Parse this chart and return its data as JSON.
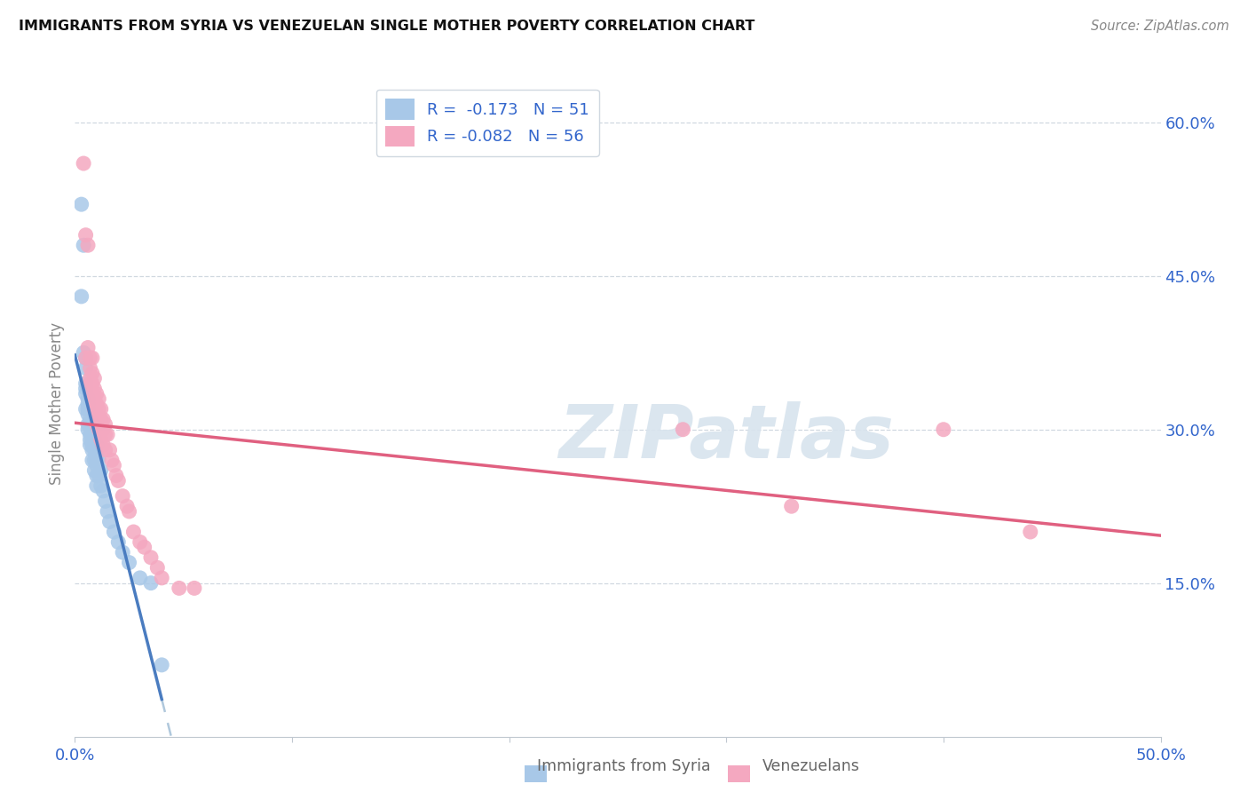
{
  "title": "IMMIGRANTS FROM SYRIA VS VENEZUELAN SINGLE MOTHER POVERTY CORRELATION CHART",
  "source": "Source: ZipAtlas.com",
  "ylabel": "Single Mother Poverty",
  "xlim": [
    0.0,
    0.5
  ],
  "ylim": [
    0.0,
    0.65
  ],
  "xticks": [
    0.0,
    0.1,
    0.2,
    0.3,
    0.4,
    0.5
  ],
  "xticklabels": [
    "0.0%",
    "",
    "",
    "",
    "",
    "50.0%"
  ],
  "yticks_right": [
    0.15,
    0.3,
    0.45,
    0.6
  ],
  "ytick_labels_right": [
    "15.0%",
    "30.0%",
    "45.0%",
    "60.0%"
  ],
  "legend_r_syria": "-0.173",
  "legend_n_syria": "51",
  "legend_r_venezuela": "-0.082",
  "legend_n_venezuela": "56",
  "color_syria": "#a8c8e8",
  "color_venezuela": "#f4a8c0",
  "color_syria_line": "#4a7cc0",
  "color_venezuela_line": "#e06080",
  "color_dashed": "#b0c8dc",
  "watermark": "ZIPatlas",
  "syria_x": [
    0.003,
    0.004,
    0.003,
    0.004,
    0.005,
    0.005,
    0.005,
    0.005,
    0.005,
    0.005,
    0.006,
    0.006,
    0.006,
    0.006,
    0.006,
    0.006,
    0.007,
    0.007,
    0.007,
    0.007,
    0.007,
    0.008,
    0.008,
    0.008,
    0.008,
    0.008,
    0.009,
    0.009,
    0.009,
    0.009,
    0.01,
    0.01,
    0.01,
    0.01,
    0.01,
    0.01,
    0.011,
    0.011,
    0.012,
    0.012,
    0.013,
    0.014,
    0.015,
    0.016,
    0.018,
    0.02,
    0.022,
    0.025,
    0.03,
    0.035,
    0.04
  ],
  "syria_y": [
    0.52,
    0.48,
    0.43,
    0.375,
    0.37,
    0.36,
    0.345,
    0.34,
    0.335,
    0.32,
    0.33,
    0.325,
    0.32,
    0.315,
    0.305,
    0.3,
    0.31,
    0.305,
    0.295,
    0.29,
    0.285,
    0.305,
    0.295,
    0.285,
    0.28,
    0.27,
    0.29,
    0.28,
    0.27,
    0.26,
    0.285,
    0.275,
    0.27,
    0.265,
    0.255,
    0.245,
    0.27,
    0.255,
    0.26,
    0.245,
    0.24,
    0.23,
    0.22,
    0.21,
    0.2,
    0.19,
    0.18,
    0.17,
    0.155,
    0.15,
    0.07
  ],
  "venezuela_x": [
    0.004,
    0.005,
    0.005,
    0.006,
    0.006,
    0.007,
    0.007,
    0.007,
    0.007,
    0.008,
    0.008,
    0.008,
    0.008,
    0.009,
    0.009,
    0.009,
    0.009,
    0.01,
    0.01,
    0.01,
    0.01,
    0.011,
    0.011,
    0.011,
    0.011,
    0.012,
    0.012,
    0.012,
    0.012,
    0.013,
    0.013,
    0.013,
    0.014,
    0.014,
    0.014,
    0.015,
    0.016,
    0.017,
    0.018,
    0.019,
    0.02,
    0.022,
    0.024,
    0.025,
    0.027,
    0.03,
    0.032,
    0.035,
    0.038,
    0.04,
    0.048,
    0.055,
    0.28,
    0.33,
    0.4,
    0.44
  ],
  "venezuela_y": [
    0.56,
    0.49,
    0.37,
    0.48,
    0.38,
    0.37,
    0.36,
    0.35,
    0.345,
    0.37,
    0.355,
    0.345,
    0.335,
    0.35,
    0.34,
    0.33,
    0.32,
    0.335,
    0.325,
    0.315,
    0.305,
    0.33,
    0.32,
    0.31,
    0.3,
    0.32,
    0.31,
    0.3,
    0.29,
    0.31,
    0.3,
    0.285,
    0.305,
    0.295,
    0.28,
    0.295,
    0.28,
    0.27,
    0.265,
    0.255,
    0.25,
    0.235,
    0.225,
    0.22,
    0.2,
    0.19,
    0.185,
    0.175,
    0.165,
    0.155,
    0.145,
    0.145,
    0.3,
    0.225,
    0.3,
    0.2
  ]
}
